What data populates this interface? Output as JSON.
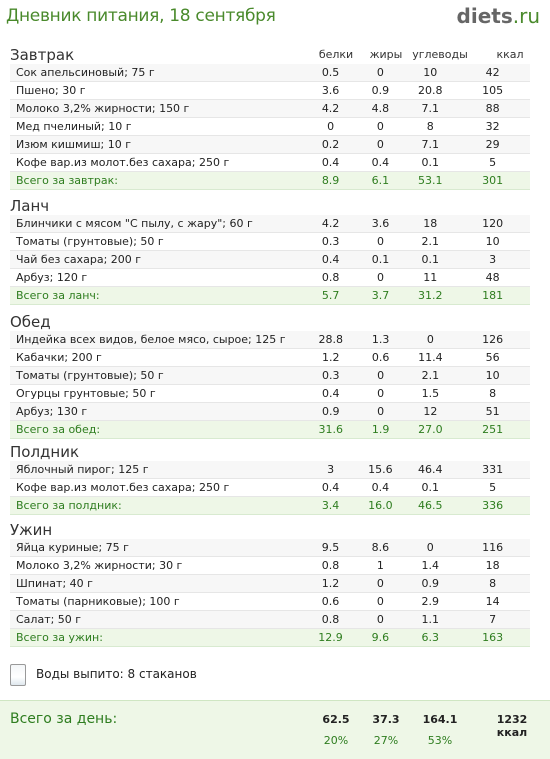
{
  "header": {
    "title": "Дневник питания, 18 сентября",
    "logo_main": "diets",
    "logo_domain": ".ru"
  },
  "columns": {
    "protein": "белки",
    "fat": "жиры",
    "carbs": "углеводы",
    "kcal": "ккал"
  },
  "meals": [
    {
      "title": "Завтрак",
      "rows": [
        {
          "name": "Сок апельсиновый; 75 г",
          "p": "0.5",
          "f": "0",
          "c": "10",
          "k": "42"
        },
        {
          "name": "Пшено; 30 г",
          "p": "3.6",
          "f": "0.9",
          "c": "20.8",
          "k": "105"
        },
        {
          "name": "Молоко 3,2% жирности; 150 г",
          "p": "4.2",
          "f": "4.8",
          "c": "7.1",
          "k": "88"
        },
        {
          "name": "Мед пчелиный; 10 г",
          "p": "0",
          "f": "0",
          "c": "8",
          "k": "32"
        },
        {
          "name": "Изюм кишмиш; 10 г",
          "p": "0.2",
          "f": "0",
          "c": "7.1",
          "k": "29"
        },
        {
          "name": "Кофе вар.из молот.без сахара; 250 г",
          "p": "0.4",
          "f": "0.4",
          "c": "0.1",
          "k": "5"
        }
      ],
      "total": {
        "name": "Всего за завтрак:",
        "p": "8.9",
        "f": "6.1",
        "c": "53.1",
        "k": "301"
      }
    },
    {
      "title": "Ланч",
      "rows": [
        {
          "name": "Блинчики с мясом \"С пылу, с жару\"; 60 г",
          "p": "4.2",
          "f": "3.6",
          "c": "18",
          "k": "120"
        },
        {
          "name": "Томаты (грунтовые); 50 г",
          "p": "0.3",
          "f": "0",
          "c": "2.1",
          "k": "10"
        },
        {
          "name": "Чай без сахара; 200 г",
          "p": "0.4",
          "f": "0.1",
          "c": "0.1",
          "k": "3"
        },
        {
          "name": "Арбуз; 120 г",
          "p": "0.8",
          "f": "0",
          "c": "11",
          "k": "48"
        }
      ],
      "total": {
        "name": "Всего за ланч:",
        "p": "5.7",
        "f": "3.7",
        "c": "31.2",
        "k": "181"
      }
    },
    {
      "title": "Обед",
      "rows": [
        {
          "name": "Индейка всех видов, белое мясо, сырое; 125 г",
          "p": "28.8",
          "f": "1.3",
          "c": "0",
          "k": "126"
        },
        {
          "name": "Кабачки; 200 г",
          "p": "1.2",
          "f": "0.6",
          "c": "11.4",
          "k": "56"
        },
        {
          "name": "Томаты (грунтовые); 50 г",
          "p": "0.3",
          "f": "0",
          "c": "2.1",
          "k": "10"
        },
        {
          "name": "Огурцы грунтовые; 50 г",
          "p": "0.4",
          "f": "0",
          "c": "1.5",
          "k": "8"
        },
        {
          "name": "Арбуз; 130 г",
          "p": "0.9",
          "f": "0",
          "c": "12",
          "k": "51"
        }
      ],
      "total": {
        "name": "Всего за обед:",
        "p": "31.6",
        "f": "1.9",
        "c": "27.0",
        "k": "251"
      }
    },
    {
      "title": "Полдник",
      "rows": [
        {
          "name": "Яблочный пирог; 125 г",
          "p": "3",
          "f": "15.6",
          "c": "46.4",
          "k": "331"
        },
        {
          "name": "Кофе вар.из молот.без сахара; 250 г",
          "p": "0.4",
          "f": "0.4",
          "c": "0.1",
          "k": "5"
        }
      ],
      "total": {
        "name": "Всего за полдник:",
        "p": "3.4",
        "f": "16.0",
        "c": "46.5",
        "k": "336"
      }
    },
    {
      "title": "Ужин",
      "rows": [
        {
          "name": "Яйца куриные; 75 г",
          "p": "9.5",
          "f": "8.6",
          "c": "0",
          "k": "116"
        },
        {
          "name": "Молоко 3,2% жирности; 30 г",
          "p": "0.8",
          "f": "1",
          "c": "1.4",
          "k": "18"
        },
        {
          "name": "Шпинат; 40 г",
          "p": "1.2",
          "f": "0",
          "c": "0.9",
          "k": "8"
        },
        {
          "name": "Томаты (парниковые); 100 г",
          "p": "0.6",
          "f": "0",
          "c": "2.9",
          "k": "14"
        },
        {
          "name": "Салат; 50 г",
          "p": "0.8",
          "f": "0",
          "c": "1.1",
          "k": "7"
        }
      ],
      "total": {
        "name": "Всего за ужин:",
        "p": "12.9",
        "f": "9.6",
        "c": "6.3",
        "k": "163"
      }
    }
  ],
  "water": {
    "icon": "water-glass-icon",
    "text": "Воды выпито: 8 стаканов"
  },
  "day": {
    "label": "Всего за день:",
    "p": "62.5",
    "f": "37.3",
    "c": "164.1",
    "k": "1232 ккал",
    "p_pct": "20%",
    "f_pct": "27%",
    "c_pct": "53%"
  },
  "colors": {
    "accent": "#4a8a2c",
    "total_bg": "#eef7e7",
    "total_text": "#2e7d1f"
  }
}
